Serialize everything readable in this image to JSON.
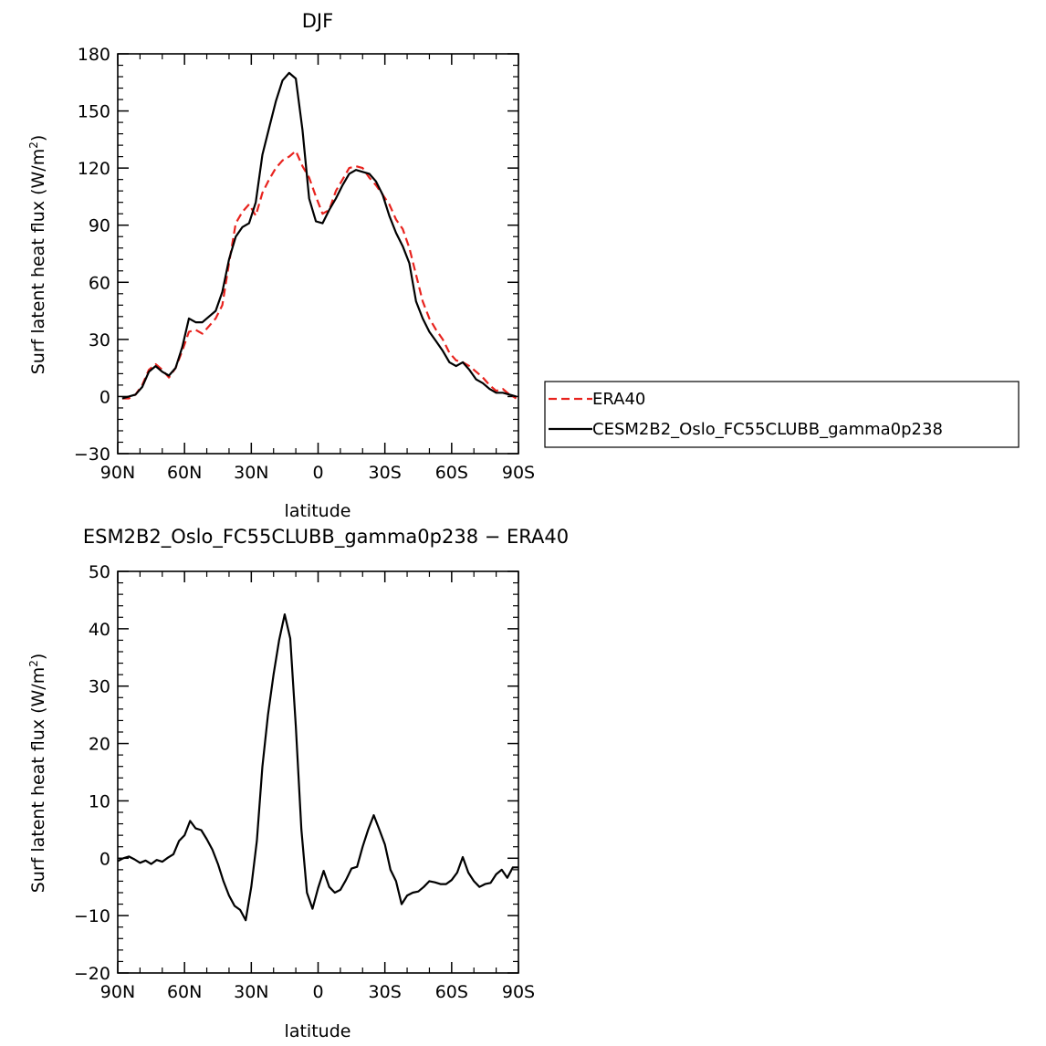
{
  "figure": {
    "top_title": "DJF",
    "bottom_title": "ESM2B2_Oslo_FC55CLUBB_gamma0p238 − ERA40"
  },
  "chart_data": [
    {
      "type": "line",
      "title": "DJF",
      "xlabel": "latitude",
      "ylabel": "Surf latent heat flux (W/m²)",
      "xlim": [
        90,
        -90
      ],
      "ylim": [
        -30,
        180
      ],
      "x_ticks": [
        90,
        60,
        30,
        0,
        -30,
        -60,
        -90
      ],
      "x_tick_labels": [
        "90N",
        "60N",
        "30N",
        "0",
        "30S",
        "60S",
        "90S"
      ],
      "y_ticks": [
        -30,
        0,
        30,
        60,
        90,
        120,
        150,
        180
      ],
      "y_tick_labels": [
        "−30",
        "0",
        "30",
        "60",
        "90",
        "120",
        "150",
        "180"
      ],
      "grid": false,
      "legend_position": "right",
      "series": [
        {
          "name": "ERA40",
          "color": "#e8231e",
          "dash": "dashed",
          "x": [
            88,
            85,
            82,
            79,
            76,
            73,
            70,
            67,
            64,
            61,
            58,
            55,
            52,
            49,
            46,
            43,
            40,
            37,
            34,
            31,
            28,
            25,
            22,
            19,
            16,
            13,
            10,
            7,
            4,
            1,
            -2,
            -5,
            -8,
            -11,
            -14,
            -17,
            -20,
            -23,
            -26,
            -29,
            -32,
            -35,
            -38,
            -41,
            -44,
            -47,
            -50,
            -53,
            -56,
            -59,
            -62,
            -65,
            -68,
            -71,
            -74,
            -77,
            -80,
            -83,
            -86,
            -89
          ],
          "y": [
            -1,
            -1,
            1,
            6,
            14,
            17,
            14,
            10,
            15,
            24,
            34,
            35,
            33,
            37,
            41,
            48,
            70,
            91,
            97,
            101,
            95,
            107,
            114,
            120,
            124,
            126,
            129,
            121,
            115,
            105,
            96,
            98,
            108,
            114,
            120,
            121,
            120,
            115,
            111,
            106,
            101,
            93,
            88,
            78,
            64,
            50,
            41,
            35,
            30,
            23,
            19,
            18,
            16,
            13,
            10,
            6,
            3,
            4,
            1,
            -1
          ]
        },
        {
          "name": "CESM2B2_Oslo_FC55CLUBB_gamma0p238",
          "color": "#000000",
          "dash": "solid",
          "x": [
            88,
            85,
            82,
            79,
            76,
            73,
            70,
            67,
            64,
            61,
            58,
            55,
            52,
            49,
            46,
            43,
            40,
            37,
            34,
            31,
            28,
            25,
            22,
            19,
            16,
            13,
            10,
            7,
            4,
            1,
            -2,
            -5,
            -8,
            -11,
            -14,
            -17,
            -20,
            -23,
            -26,
            -29,
            -32,
            -35,
            -38,
            -41,
            -44,
            -47,
            -50,
            -53,
            -56,
            -59,
            -62,
            -65,
            -68,
            -71,
            -74,
            -77,
            -80,
            -83,
            -86,
            -89
          ],
          "y": [
            -1,
            0,
            1,
            5,
            13,
            16,
            13,
            11,
            15,
            26,
            41,
            39,
            39,
            42,
            45,
            55,
            72,
            84,
            89,
            91,
            102,
            127,
            141,
            155,
            166,
            170,
            167,
            140,
            104,
            92,
            91,
            98,
            104,
            111,
            117,
            119,
            118,
            117,
            113,
            106,
            95,
            86,
            79,
            70,
            50,
            41,
            34,
            29,
            24,
            18,
            16,
            18,
            14,
            9,
            7,
            4,
            2,
            2,
            1,
            0
          ]
        }
      ]
    },
    {
      "type": "line",
      "title": "ESM2B2_Oslo_FC55CLUBB_gamma0p238 − ERA40",
      "xlabel": "latitude",
      "ylabel": "Surf latent heat flux (W/m²)",
      "xlim": [
        90,
        -90
      ],
      "ylim": [
        -20,
        50
      ],
      "x_ticks": [
        90,
        60,
        30,
        0,
        -30,
        -60,
        -90
      ],
      "x_tick_labels": [
        "90N",
        "60N",
        "30N",
        "0",
        "30S",
        "60S",
        "90S"
      ],
      "y_ticks": [
        -20,
        -10,
        0,
        10,
        20,
        30,
        40,
        50
      ],
      "y_tick_labels": [
        "−20",
        "−10",
        "0",
        "10",
        "20",
        "30",
        "40",
        "50"
      ],
      "grid": false,
      "series": [
        {
          "color": "#000000",
          "dash": "solid",
          "x": [
            90,
            87.5,
            85,
            82.5,
            80,
            77.5,
            75,
            72.5,
            70,
            67.5,
            65,
            62.5,
            60,
            57.5,
            55,
            52.5,
            50,
            47.5,
            45,
            42.5,
            40,
            37.5,
            35,
            32.5,
            30,
            27.5,
            25,
            22.5,
            20,
            17.5,
            15,
            12.5,
            10,
            7.5,
            5,
            2.5,
            0,
            -2.5,
            -5,
            -7.5,
            -10,
            -12.5,
            -15,
            -17.5,
            -20,
            -22.5,
            -25,
            -27.5,
            -30,
            -32.5,
            -35,
            -37.5,
            -40,
            -42.5,
            -45,
            -47.5,
            -50,
            -52.5,
            -55,
            -57.5,
            -60,
            -62.5,
            -65,
            -67.5,
            -70,
            -72.5,
            -75,
            -77.5,
            -80,
            -82.5,
            -85,
            -87.5,
            -90
          ],
          "y": [
            -0.5,
            0,
            0.3,
            -0.2,
            -0.8,
            -0.4,
            -1,
            -0.3,
            -0.6,
            0.1,
            0.7,
            3,
            4,
            6.5,
            5.2,
            4.9,
            3.3,
            1.5,
            -1,
            -4,
            -6.5,
            -8.3,
            -9,
            -10.8,
            -5,
            3,
            16,
            25,
            32,
            38,
            42.5,
            38.3,
            23,
            5,
            -6,
            -8.8,
            -5.2,
            -2.2,
            -5,
            -6,
            -5.5,
            -3.8,
            -1.8,
            -1.5,
            2,
            5,
            7.5,
            5,
            2.4,
            -2,
            -4,
            -8,
            -6.5,
            -6,
            -5.8,
            -5,
            -4,
            -4.2,
            -4.5,
            -4.5,
            -3.8,
            -2.5,
            0.2,
            -2.5,
            -4,
            -5,
            -4.5,
            -4.3,
            -2.8,
            -2,
            -3.4,
            -1.6,
            -1.6
          ]
        }
      ]
    }
  ]
}
